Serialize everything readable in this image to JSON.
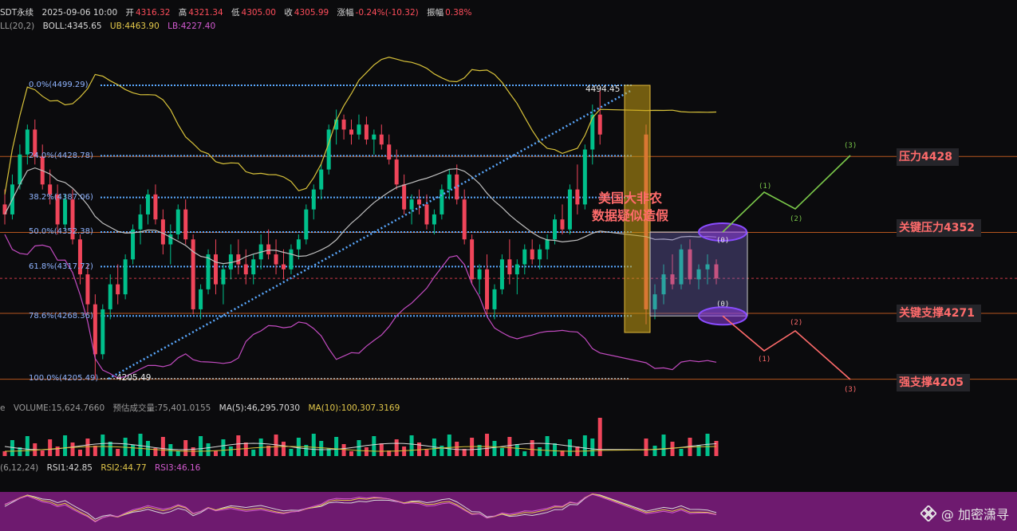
{
  "header": {
    "symbol": "SDT永续",
    "datetime": "2025-09-06 10:00",
    "open_label": "开",
    "open": "4316.32",
    "high_label": "高",
    "high": "4321.34",
    "low_label": "低",
    "low": "4305.00",
    "close_label": "收",
    "close": "4305.99",
    "change_label": "涨幅",
    "change": "-0.24%(-10.32)",
    "amp_label": "振幅",
    "amp": "0.38%"
  },
  "boll": {
    "label": "LL(20,2)",
    "boll": "BOLL:4345.65",
    "ub": "UB:4463.90",
    "lb": "LB:4227.40"
  },
  "volume_header": {
    "prefix": "e",
    "volume": "VOLUME:15,624.7660",
    "est": "预估成交量:75,401.0155",
    "ma5": "MA(5):46,295.7030",
    "ma10": "MA(10):100,307.3169"
  },
  "rsi_header": {
    "label": "(6,12,24)",
    "rsi1": "RSI1:42.85",
    "rsi2": "RSI2:44.77",
    "rsi3": "RSI3:46.16"
  },
  "fib_levels": [
    {
      "label": "0.0%(4499.29)"
    },
    {
      "label": "24.0%(4428.78)"
    },
    {
      "label": "38.2%(4387.06)"
    },
    {
      "label": "50.0%(4352.38)"
    },
    {
      "label": "61.8%(4317.72)"
    },
    {
      "label": "78.6%(4268.36)"
    },
    {
      "label": "100.0%(4205.49)"
    }
  ],
  "price_levels": [
    {
      "label": "压力4428"
    },
    {
      "label": "关键压力4352"
    },
    {
      "label": "关键支撑4271"
    },
    {
      "label": "强支撑4205"
    }
  ],
  "annotations": {
    "nfp_line1": "美国大非农",
    "nfp_line2": "数据疑似造假",
    "high_mark": "4494.45",
    "low_mark": "4205.49"
  },
  "waves": {
    "up": [
      "(0)",
      "(1)",
      "(2)",
      "(3)"
    ],
    "down": [
      "(0)",
      "(1)",
      "(2)",
      "(3)"
    ]
  },
  "watermark": {
    "text": "@ 加密潇寻",
    "icon": "binance-diamond-icon"
  },
  "colors": {
    "up": "#00c08b",
    "down": "#f0455a",
    "fib": "#5aa9ff",
    "boll_mid": "#bfbfbf",
    "boll_up": "#d8c23a",
    "boll_low": "#c24bc0",
    "rsi_band": "#6e1a6f",
    "bull_path": "#7bc94a",
    "bear_path": "#ff6b6b"
  },
  "chart_data": {
    "type": "candlestick",
    "y_range": [
      4190,
      4530
    ],
    "fib_values": [
      4499.29,
      4428.78,
      4387.06,
      4352.38,
      4317.72,
      4268.36,
      4205.49
    ],
    "levels": [
      4428,
      4352,
      4271,
      4205
    ],
    "current_price": 4305.99,
    "candles": [
      [
        4380,
        4395,
        4360,
        4370
      ],
      [
        4370,
        4410,
        4365,
        4400
      ],
      [
        4400,
        4440,
        4395,
        4430
      ],
      [
        4430,
        4460,
        4420,
        4455
      ],
      [
        4455,
        4465,
        4420,
        4428
      ],
      [
        4428,
        4440,
        4395,
        4400
      ],
      [
        4400,
        4415,
        4380,
        4390
      ],
      [
        4390,
        4400,
        4350,
        4360
      ],
      [
        4360,
        4390,
        4355,
        4385
      ],
      [
        4385,
        4395,
        4340,
        4345
      ],
      [
        4345,
        4350,
        4300,
        4310
      ],
      [
        4310,
        4320,
        4270,
        4280
      ],
      [
        4280,
        4290,
        4205,
        4230
      ],
      [
        4230,
        4280,
        4225,
        4275
      ],
      [
        4275,
        4310,
        4265,
        4300
      ],
      [
        4300,
        4320,
        4280,
        4290
      ],
      [
        4290,
        4330,
        4285,
        4325
      ],
      [
        4325,
        4360,
        4320,
        4355
      ],
      [
        4355,
        4380,
        4340,
        4370
      ],
      [
        4370,
        4395,
        4360,
        4390
      ],
      [
        4390,
        4400,
        4360,
        4365
      ],
      [
        4365,
        4375,
        4330,
        4340
      ],
      [
        4340,
        4360,
        4320,
        4350
      ],
      [
        4350,
        4380,
        4345,
        4375
      ],
      [
        4375,
        4385,
        4340,
        4345
      ],
      [
        4345,
        4350,
        4270,
        4275
      ],
      [
        4275,
        4300,
        4265,
        4295
      ],
      [
        4295,
        4335,
        4290,
        4330
      ],
      [
        4330,
        4345,
        4290,
        4300
      ],
      [
        4300,
        4320,
        4280,
        4315
      ],
      [
        4315,
        4340,
        4305,
        4330
      ],
      [
        4330,
        4345,
        4310,
        4320
      ],
      [
        4320,
        4335,
        4300,
        4310
      ],
      [
        4310,
        4330,
        4300,
        4325
      ],
      [
        4325,
        4350,
        4315,
        4340
      ],
      [
        4340,
        4355,
        4325,
        4330
      ],
      [
        4330,
        4345,
        4310,
        4320
      ],
      [
        4320,
        4335,
        4305,
        4315
      ],
      [
        4315,
        4340,
        4310,
        4335
      ],
      [
        4335,
        4350,
        4325,
        4345
      ],
      [
        4345,
        4380,
        4340,
        4375
      ],
      [
        4375,
        4400,
        4365,
        4395
      ],
      [
        4395,
        4420,
        4385,
        4415
      ],
      [
        4415,
        4460,
        4410,
        4455
      ],
      [
        4455,
        4475,
        4440,
        4465
      ],
      [
        4465,
        4470,
        4445,
        4455
      ],
      [
        4455,
        4465,
        4440,
        4450
      ],
      [
        4450,
        4470,
        4445,
        4460
      ],
      [
        4460,
        4468,
        4440,
        4445
      ],
      [
        4445,
        4455,
        4430,
        4450
      ],
      [
        4450,
        4460,
        4435,
        4440
      ],
      [
        4440,
        4450,
        4420,
        4425
      ],
      [
        4425,
        4435,
        4395,
        4400
      ],
      [
        4400,
        4410,
        4370,
        4375
      ],
      [
        4375,
        4390,
        4360,
        4385
      ],
      [
        4385,
        4395,
        4370,
        4380
      ],
      [
        4380,
        4390,
        4355,
        4360
      ],
      [
        4360,
        4375,
        4350,
        4370
      ],
      [
        4370,
        4400,
        4365,
        4395
      ],
      [
        4395,
        4415,
        4385,
        4410
      ],
      [
        4410,
        4420,
        4380,
        4385
      ],
      [
        4385,
        4395,
        4340,
        4345
      ],
      [
        4345,
        4350,
        4300,
        4305
      ],
      [
        4305,
        4320,
        4290,
        4315
      ],
      [
        4315,
        4330,
        4270,
        4275
      ],
      [
        4275,
        4300,
        4265,
        4295
      ],
      [
        4295,
        4330,
        4290,
        4325
      ],
      [
        4325,
        4345,
        4300,
        4310
      ],
      [
        4310,
        4325,
        4290,
        4320
      ],
      [
        4320,
        4340,
        4310,
        4335
      ],
      [
        4335,
        4345,
        4320,
        4325
      ],
      [
        4325,
        4340,
        4315,
        4335
      ],
      [
        4335,
        4350,
        4325,
        4345
      ],
      [
        4345,
        4370,
        4340,
        4365
      ],
      [
        4365,
        4380,
        4350,
        4355
      ],
      [
        4355,
        4400,
        4350,
        4395
      ],
      [
        4395,
        4420,
        4370,
        4380
      ],
      [
        4380,
        4440,
        4375,
        4435
      ],
      [
        4435,
        4480,
        4420,
        4470
      ],
      [
        4470,
        4494,
        4440,
        4450
      ],
      [
        4450,
        4460,
        4260,
        4275
      ],
      [
        4275,
        4300,
        4265,
        4290
      ],
      [
        4290,
        4320,
        4280,
        4310
      ],
      [
        4310,
        4330,
        4295,
        4300
      ],
      [
        4300,
        4340,
        4295,
        4335
      ],
      [
        4335,
        4345,
        4300,
        4305
      ],
      [
        4305,
        4320,
        4295,
        4315
      ],
      [
        4315,
        4330,
        4300,
        4320
      ],
      [
        4320,
        4325,
        4300,
        4306
      ]
    ]
  }
}
